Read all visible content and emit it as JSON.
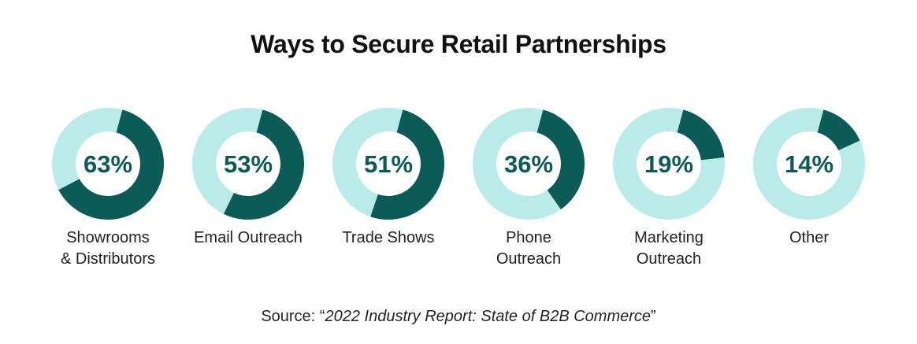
{
  "chart_data": {
    "type": "pie",
    "variant": "donut",
    "title": "Ways to Secure Retail Partnerships",
    "categories": [
      [
        "Showrooms",
        "& Distributors"
      ],
      [
        "Email Outreach"
      ],
      [
        "Trade Shows"
      ],
      [
        "Phone",
        "Outreach"
      ],
      [
        "Marketing",
        "Outreach"
      ],
      [
        "Other"
      ]
    ],
    "values": [
      63,
      53,
      51,
      36,
      19,
      14
    ],
    "value_labels": [
      "63%",
      "53%",
      "51%",
      "36%",
      "19%",
      "14%"
    ],
    "ylim": [
      0,
      100
    ],
    "colors": {
      "filled": "#0b5c56",
      "remainder": "#b9ebe8",
      "value_text": "#0b5c56"
    }
  },
  "source": {
    "prefix": "Source: “",
    "report": "2022 Industry Report: State of B2B Commerce",
    "suffix": "”"
  }
}
